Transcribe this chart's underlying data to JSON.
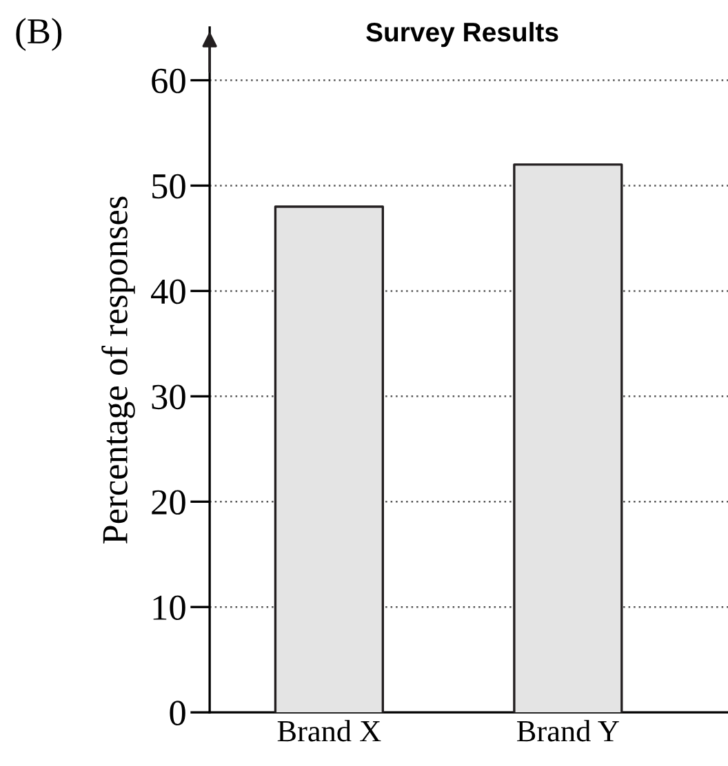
{
  "chart_data": {
    "type": "bar",
    "title": "Survey Results",
    "ylabel": "Percentage of responses",
    "annotations": [
      "(B)"
    ],
    "categories": [
      "Brand X",
      "Brand Y"
    ],
    "values": [
      48,
      52
    ],
    "color": "#e4e4e4",
    "ylim": [
      0,
      65
    ],
    "yticks": [
      0,
      10,
      20,
      30,
      40,
      50,
      60
    ],
    "grid": "y"
  }
}
